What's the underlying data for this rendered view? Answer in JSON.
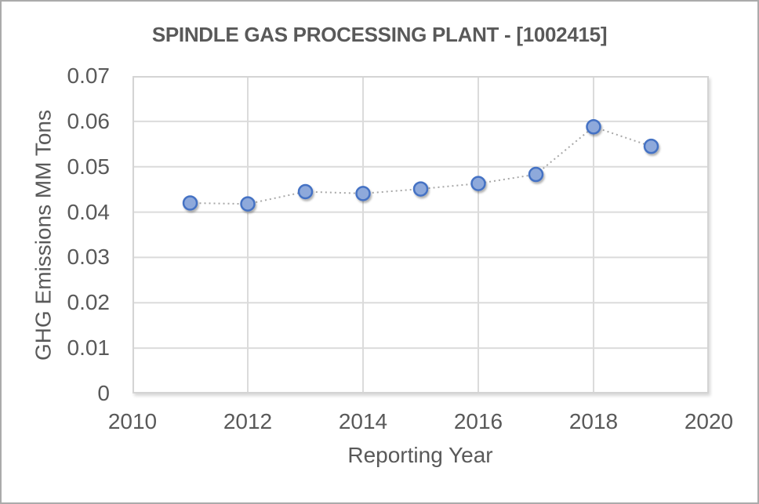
{
  "chart_data": {
    "type": "line",
    "title": "SPINDLE GAS PROCESSING PLANT - [1002415]",
    "xlabel": "Reporting Year",
    "ylabel": "GHG Emissions MM Tons",
    "x": [
      2011,
      2012,
      2013,
      2014,
      2015,
      2016,
      2017,
      2018,
      2019
    ],
    "values": [
      0.042,
      0.0418,
      0.0445,
      0.0441,
      0.0451,
      0.0463,
      0.0483,
      0.0588,
      0.0545
    ],
    "xlim": [
      2010,
      2020
    ],
    "ylim": [
      0,
      0.07
    ],
    "x_ticks": [
      "2010",
      "2012",
      "2014",
      "2016",
      "2018",
      "2020"
    ],
    "y_ticks": [
      "0",
      "0.01",
      "0.02",
      "0.03",
      "0.04",
      "0.05",
      "0.06",
      "0.07"
    ],
    "grid": true,
    "legend": "none",
    "line_style": "dotted",
    "marker": "circle",
    "colors": {
      "marker_fill": "#8EA9DB",
      "marker_stroke": "#4472C4",
      "line": "#A8A8A8",
      "grid": "#DBDBDB",
      "text": "#595959",
      "frame_border": "#ABABAB"
    }
  }
}
